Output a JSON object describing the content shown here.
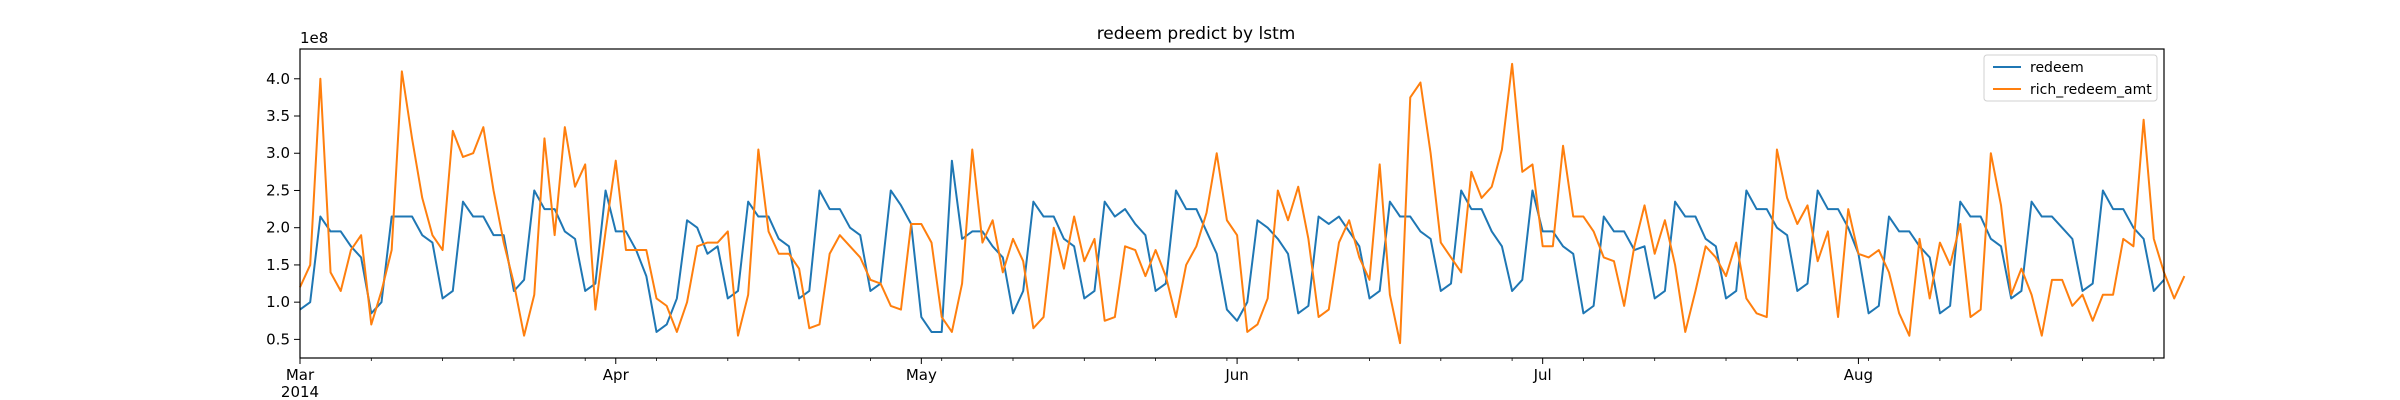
{
  "chart_data": {
    "type": "line",
    "title": "redeem predict by lstm",
    "xlabel": "",
    "ylabel": "",
    "y_offset_label": "1e8",
    "x_tick_labels": [
      "Mar\n2014",
      "Apr",
      "May",
      "Jun",
      "Jul",
      "Aug"
    ],
    "x_tick_dates": [
      "2014-03-01",
      "2014-04-01",
      "2014-05-01",
      "2014-06-01",
      "2014-07-01",
      "2014-08-01"
    ],
    "y_tick_labels": [
      "0.5",
      "1.0",
      "1.5",
      "2.0",
      "2.5",
      "3.0",
      "3.5",
      "4.0"
    ],
    "y_ticks": [
      0.5,
      1.0,
      1.5,
      2.0,
      2.5,
      3.0,
      3.5,
      4.0
    ],
    "xlim": [
      "2014-03-01",
      "2014-08-31"
    ],
    "ylim": [
      0.25,
      4.4
    ],
    "grid": false,
    "legend_position": "upper right",
    "series": [
      {
        "name": "redeem",
        "color": "#1f77b4",
        "values": [
          0.9,
          1.0,
          2.15,
          1.95,
          1.95,
          1.75,
          1.6,
          0.85,
          1.0,
          2.15,
          2.15,
          2.15,
          1.9,
          1.8,
          1.05,
          1.15,
          2.35,
          2.15,
          2.15,
          1.9,
          1.9,
          1.15,
          1.3,
          2.5,
          2.25,
          2.25,
          1.95,
          1.85,
          1.15,
          1.25,
          2.5,
          1.95,
          1.95,
          1.7,
          1.35,
          0.6,
          0.7,
          1.05,
          2.1,
          2.0,
          1.65,
          1.75,
          1.05,
          1.15,
          2.35,
          2.15,
          2.15,
          1.85,
          1.75,
          1.05,
          1.15,
          2.5,
          2.25,
          2.25,
          2.0,
          1.9,
          1.15,
          1.25,
          2.5,
          2.3,
          2.05,
          0.8,
          0.6,
          0.6,
          2.9,
          1.85,
          1.95,
          1.95,
          1.75,
          1.6,
          0.85,
          1.15,
          2.35,
          2.15,
          2.15,
          1.85,
          1.75,
          1.05,
          1.15,
          2.35,
          2.15,
          2.25,
          2.05,
          1.9,
          1.15,
          1.25,
          2.5,
          2.25,
          2.25,
          1.95,
          1.65,
          0.9,
          0.75,
          1.0,
          2.1,
          2.0,
          1.85,
          1.65,
          0.85,
          0.95,
          2.15,
          2.05,
          2.15,
          1.95,
          1.75,
          1.05,
          1.15,
          2.35,
          2.15,
          2.15,
          1.95,
          1.85,
          1.15,
          1.25,
          2.5,
          2.25,
          2.25,
          1.95,
          1.75,
          1.15,
          1.3,
          2.5,
          1.95,
          1.95,
          1.75,
          1.65,
          0.85,
          0.95,
          2.15,
          1.95,
          1.95,
          1.7,
          1.75,
          1.05,
          1.15,
          2.35,
          2.15,
          2.15,
          1.85,
          1.75,
          1.05,
          1.15,
          2.5,
          2.25,
          2.25,
          2.0,
          1.9,
          1.15,
          1.25,
          2.5,
          2.25,
          2.25,
          2.0,
          1.65,
          0.85,
          0.95,
          2.15,
          1.95,
          1.95,
          1.75,
          1.6,
          0.85,
          0.95,
          2.35,
          2.15,
          2.15,
          1.85,
          1.75,
          1.05,
          1.15,
          2.35,
          2.15,
          2.15,
          2.0,
          1.85,
          1.15,
          1.25,
          2.5,
          2.25,
          2.25,
          2.0,
          1.85,
          1.15,
          1.3
        ]
      },
      {
        "name": "rich_redeem_amt",
        "color": "#ff7f0e",
        "values": [
          1.2,
          1.5,
          4.0,
          1.4,
          1.15,
          1.7,
          1.9,
          0.7,
          1.15,
          1.7,
          4.1,
          3.2,
          2.4,
          1.9,
          1.7,
          3.3,
          2.95,
          3.0,
          3.35,
          2.5,
          1.8,
          1.25,
          0.55,
          1.1,
          3.2,
          1.9,
          3.35,
          2.55,
          2.85,
          0.9,
          1.95,
          2.9,
          1.7,
          1.7,
          1.7,
          1.05,
          0.95,
          0.6,
          1.0,
          1.75,
          1.8,
          1.8,
          1.95,
          0.55,
          1.1,
          3.05,
          1.95,
          1.65,
          1.65,
          1.45,
          0.65,
          0.7,
          1.65,
          1.9,
          1.75,
          1.6,
          1.3,
          1.25,
          0.95,
          0.9,
          2.05,
          2.05,
          1.8,
          0.8,
          0.6,
          1.25,
          3.05,
          1.8,
          2.1,
          1.4,
          1.85,
          1.55,
          0.65,
          0.8,
          2.0,
          1.45,
          2.15,
          1.55,
          1.85,
          0.75,
          0.8,
          1.75,
          1.7,
          1.35,
          1.7,
          1.35,
          0.8,
          1.5,
          1.75,
          2.2,
          3.0,
          2.1,
          1.9,
          0.6,
          0.7,
          1.05,
          2.5,
          2.1,
          2.55,
          1.85,
          0.8,
          0.9,
          1.8,
          2.1,
          1.6,
          1.3,
          2.85,
          1.1,
          0.45,
          3.75,
          3.95,
          3.0,
          1.8,
          1.6,
          1.4,
          2.75,
          2.4,
          2.55,
          3.05,
          4.2,
          2.75,
          2.85,
          1.75,
          1.75,
          3.1,
          2.15,
          2.15,
          1.95,
          1.6,
          1.55,
          0.95,
          1.75,
          2.3,
          1.65,
          2.1,
          1.5,
          0.6,
          1.15,
          1.75,
          1.6,
          1.35,
          1.8,
          1.05,
          0.85,
          0.8,
          3.05,
          2.4,
          2.05,
          2.3,
          1.55,
          1.95,
          0.8,
          2.25,
          1.65,
          1.6,
          1.7,
          1.4,
          0.85,
          0.55,
          1.85,
          1.05,
          1.8,
          1.5,
          2.05,
          0.8,
          0.9,
          3.0,
          2.3,
          1.1,
          1.45,
          1.1,
          0.55,
          1.3,
          1.3,
          0.95,
          1.1,
          0.75,
          1.1,
          1.1,
          1.85,
          1.75,
          3.45,
          1.85,
          1.4,
          1.05,
          1.35
        ]
      }
    ]
  }
}
